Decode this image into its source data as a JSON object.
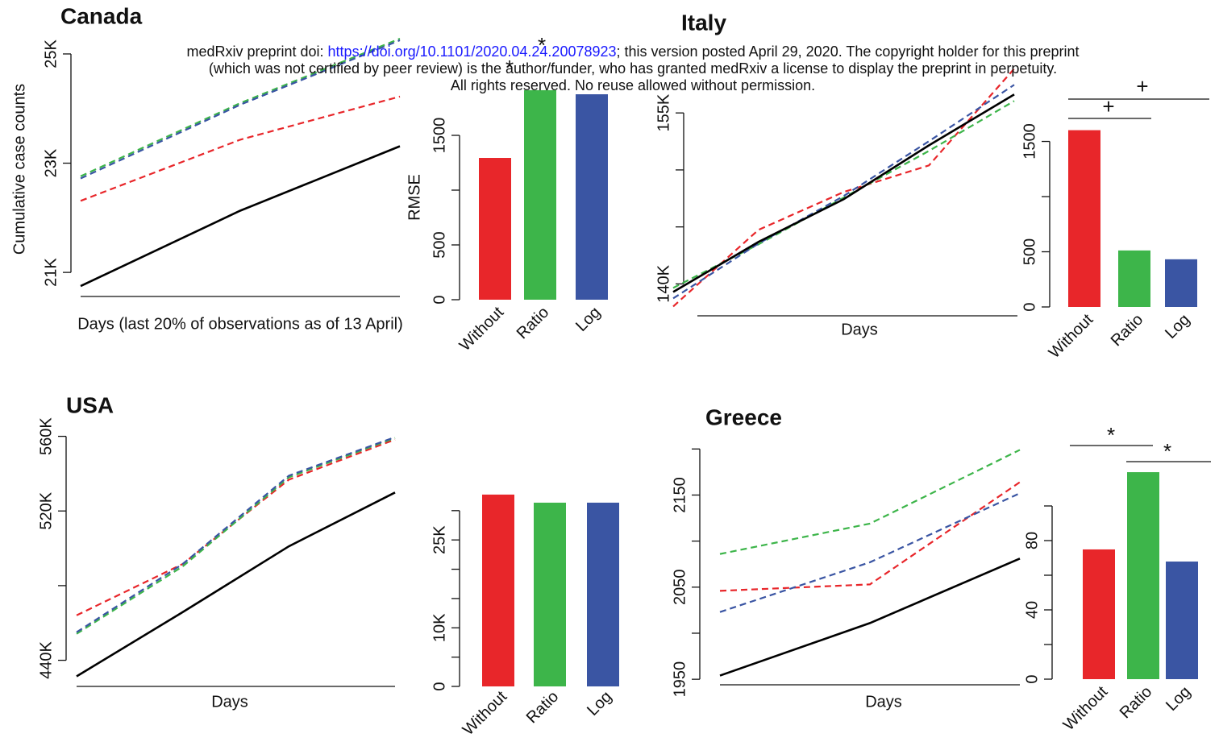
{
  "header": {
    "line1_prefix": "medRxiv preprint doi: ",
    "doi_link": "https://doi.org/10.1101/2020.04.24.20078923",
    "line1_suffix": "; this version posted April 29, 2020. The copyright holder for this preprint",
    "line2": "(which was not certified by peer review) is the author/funder, who has granted medRxiv a license to display the preprint in perpetuity.",
    "line3": "All rights reserved. No reuse allowed without permission."
  },
  "chart_data": [
    {
      "type": "line",
      "title": "Canada",
      "xlabel": "Days (last 20% of observations as of 13 April)",
      "ylabel": "Cumulative case counts",
      "ylim": [
        20500,
        25250
      ],
      "yticks": [
        {
          "value": 21000,
          "label": "21K"
        },
        {
          "value": 23000,
          "label": "23K"
        },
        {
          "value": 25000,
          "label": "25K"
        }
      ],
      "series": [
        {
          "color": "#e8262a",
          "dash": true,
          "values": [
            22310,
            23430,
            24220
          ]
        },
        {
          "color": "#3db54a",
          "dash": true,
          "values": [
            22760,
            24100,
            25280
          ]
        },
        {
          "color": "#3a55a3",
          "dash": true,
          "values": [
            22720,
            24070,
            25250
          ]
        },
        {
          "color": "#000000",
          "dash": false,
          "values": [
            20750,
            22130,
            23310
          ]
        }
      ]
    },
    {
      "type": "bar",
      "ylabel": "RMSE",
      "categories": [
        "Without",
        "Ratio",
        "Log"
      ],
      "values": [
        1294,
        1912,
        1875
      ],
      "colors": [
        "#e8262a",
        "#3db54a",
        "#3a55a3"
      ],
      "ylim": [
        0,
        2000
      ],
      "yticks": [
        0,
        500,
        {
          "value": 1000,
          "label": null
        },
        1500
      ],
      "annotations": [
        "*",
        "*"
      ]
    },
    {
      "type": "line",
      "title": "Italy",
      "xlabel": "Days",
      "ylim": [
        137200,
        158900
      ],
      "yticks": [
        {
          "value": 140000,
          "label": "140K"
        },
        {
          "value": 145000,
          "label": null
        },
        {
          "value": 150000,
          "label": null
        },
        {
          "value": 155000,
          "label": "155K"
        }
      ],
      "series": [
        {
          "color": "#e8262a",
          "dash": true,
          "values": [
            138020,
            144740,
            148060,
            150400,
            158880
          ]
        },
        {
          "color": "#3db54a",
          "dash": true,
          "values": [
            139650,
            143470,
            147570,
            151670,
            156050
          ]
        },
        {
          "color": "#3a55a3",
          "dash": true,
          "values": [
            138730,
            143540,
            147710,
            152520,
            157470
          ]
        },
        {
          "color": "#000000",
          "dash": false,
          "values": [
            139290,
            143680,
            147430,
            152160,
            156620
          ]
        }
      ]
    },
    {
      "type": "bar",
      "categories": [
        "Without",
        "Ratio",
        "Log"
      ],
      "values": [
        1602,
        512,
        432
      ],
      "colors": [
        "#e8262a",
        "#3db54a",
        "#3a55a3"
      ],
      "ylim": [
        0,
        1650
      ],
      "yticks": [
        0,
        500,
        {
          "value": 1000,
          "label": null
        },
        1500
      ],
      "annotations": [
        "+",
        "+"
      ]
    },
    {
      "type": "line",
      "title": "USA",
      "xlabel": "Days",
      "ylim": [
        426000,
        565000
      ],
      "yticks": [
        {
          "value": 440000,
          "label": "440K"
        },
        {
          "value": 480000,
          "label": null
        },
        {
          "value": 520000,
          "label": "520K"
        },
        {
          "value": 560000,
          "label": "560K"
        }
      ],
      "series": [
        {
          "color": "#e8262a",
          "dash": true,
          "values": [
            464090,
            491610,
            536770,
            558280
          ]
        },
        {
          "color": "#3db54a",
          "dash": true,
          "values": [
            454190,
            490320,
            538060,
            559140
          ]
        },
        {
          "color": "#3a55a3",
          "dash": true,
          "values": [
            455050,
            491610,
            538920,
            559570
          ]
        },
        {
          "color": "#000000",
          "dash": false,
          "values": [
            431400,
            465810,
            501080,
            529890
          ]
        }
      ]
    },
    {
      "type": "bar",
      "categories": [
        "Without",
        "Ratio",
        "Log"
      ],
      "values": [
        32740,
        31360,
        31360
      ],
      "colors": [
        "#e8262a",
        "#3db54a",
        "#3a55a3"
      ],
      "ylim": [
        0,
        33000
      ],
      "yticks": [
        0,
        {
          "value": 5000,
          "label": null
        },
        {
          "value": 10000,
          "label": "10K"
        },
        {
          "value": 15000,
          "label": null
        },
        {
          "value": 20000,
          "label": null
        },
        {
          "value": 25000,
          "label": "25K"
        },
        {
          "value": 30000,
          "label": null
        }
      ],
      "annotations": []
    },
    {
      "type": "line",
      "title": "Greece",
      "xlabel": "Days",
      "ylim": [
        1944,
        2202
      ],
      "yticks": [
        1950,
        {
          "value": 2000,
          "label": null
        },
        2050,
        {
          "value": 2100,
          "label": null
        },
        2150,
        {
          "value": 2200,
          "label": null
        }
      ],
      "series": [
        {
          "color": "#e8262a",
          "dash": true,
          "values": [
            2046,
            2053,
            2164
          ]
        },
        {
          "color": "#3db54a",
          "dash": true,
          "values": [
            2086,
            2119,
            2199
          ]
        },
        {
          "color": "#3a55a3",
          "dash": true,
          "values": [
            2023,
            2077,
            2152
          ]
        },
        {
          "color": "#000000",
          "dash": false,
          "values": [
            1954,
            2011,
            2081
          ]
        }
      ]
    },
    {
      "type": "bar",
      "categories": [
        "Without",
        "Ratio",
        "Log"
      ],
      "values": [
        74.9,
        119.5,
        67.9
      ],
      "colors": [
        "#e8262a",
        "#3db54a",
        "#3a55a3"
      ],
      "ylim": [
        0,
        120
      ],
      "yticks": [
        0,
        {
          "value": 20,
          "label": null
        },
        40,
        {
          "value": 60,
          "label": null
        },
        80,
        {
          "value": 100,
          "label": null
        }
      ],
      "annotations": [
        "*",
        "*"
      ]
    }
  ]
}
